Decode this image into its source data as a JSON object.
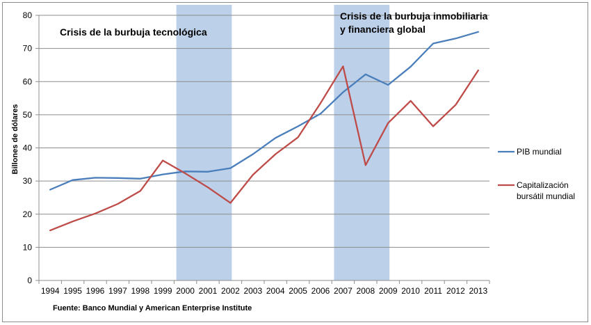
{
  "chart_data": {
    "type": "line",
    "ylabel": "Billones de dólares",
    "ylim": [
      0,
      80
    ],
    "yticks": [
      "0",
      "10",
      "20",
      "30",
      "40",
      "50",
      "60",
      "70",
      "80"
    ],
    "grid": true,
    "x": [
      "1994",
      "1995",
      "1996",
      "1997",
      "1998",
      "1999",
      "2000",
      "2001",
      "2002",
      "2003",
      "2004",
      "2005",
      "2006",
      "2007",
      "2008",
      "2009",
      "2010",
      "2011",
      "2012",
      "2013"
    ],
    "series": [
      {
        "name": "PIB mundial",
        "color": "#4a7ebb",
        "values": [
          27.4,
          30.3,
          31.0,
          30.9,
          30.7,
          32.0,
          32.9,
          32.8,
          33.9,
          38.1,
          43.0,
          46.5,
          50.3,
          56.8,
          62.2,
          59.0,
          64.5,
          71.5,
          73.0,
          75.0
        ]
      },
      {
        "name": "Capitalización bursátil mundial",
        "legend_lines": [
          "Capitalización",
          "bursátil mundial"
        ],
        "color": "#be4b48",
        "values": [
          15.1,
          17.8,
          20.2,
          23.1,
          27.0,
          36.2,
          32.3,
          28.1,
          23.4,
          31.9,
          38.1,
          43.2,
          53.5,
          64.6,
          34.8,
          47.5,
          54.2,
          46.5,
          53.0,
          63.4
        ]
      }
    ],
    "shaded_periods": [
      {
        "start": "2000",
        "end": "2002",
        "color": "#bcd0ea",
        "label_lines": [
          "Crisis de la burbuja tecnológica"
        ]
      },
      {
        "start": "2007",
        "end": "2009",
        "color": "#bcd0ea",
        "label_lines": [
          "Crisis de la burbuja inmobiliaria",
          "y financiera global"
        ]
      }
    ],
    "source": "Fuente: Banco Mundial y American Enterprise Institute"
  }
}
